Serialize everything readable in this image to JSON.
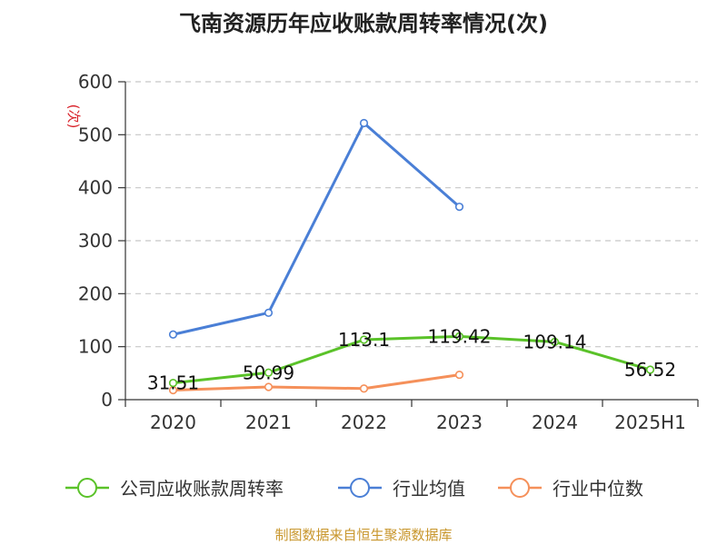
{
  "title": "飞南资源历年应收账款周转率情况(次)",
  "footer": "制图数据来自恒生聚源数据库",
  "colors": {
    "company": "#5ac229",
    "industry_avg": "#4a7fd6",
    "industry_median": "#f5905a",
    "unit": "#d9222a",
    "footer": "#c8962c",
    "grid": "#c8c8c8",
    "axis": "#333333"
  },
  "chart_data": {
    "type": "line",
    "title": "飞南资源历年应收账款周转率情况(次)",
    "ylabel": "(次)",
    "xlabel": "",
    "ylim": [
      0,
      600
    ],
    "yticks": [
      0,
      100,
      200,
      300,
      400,
      500,
      600
    ],
    "grid": true,
    "legend_position": "bottom",
    "categories": [
      "2020",
      "2021",
      "2022",
      "2023",
      "2024",
      "2025H1"
    ],
    "series": [
      {
        "name": "公司应收账款周转率",
        "color_key": "company",
        "values": [
          31.51,
          50.99,
          113.1,
          119.42,
          109.14,
          56.52
        ],
        "labels": [
          "31.51",
          "50.99",
          "113.1",
          "119.42",
          "109.14",
          "56.52"
        ]
      },
      {
        "name": "行业均值",
        "color_key": "industry_avg",
        "values": [
          123,
          164,
          522,
          364,
          null,
          null
        ]
      },
      {
        "name": "行业中位数",
        "color_key": "industry_median",
        "values": [
          18,
          24,
          21,
          47,
          null,
          null
        ]
      }
    ]
  }
}
